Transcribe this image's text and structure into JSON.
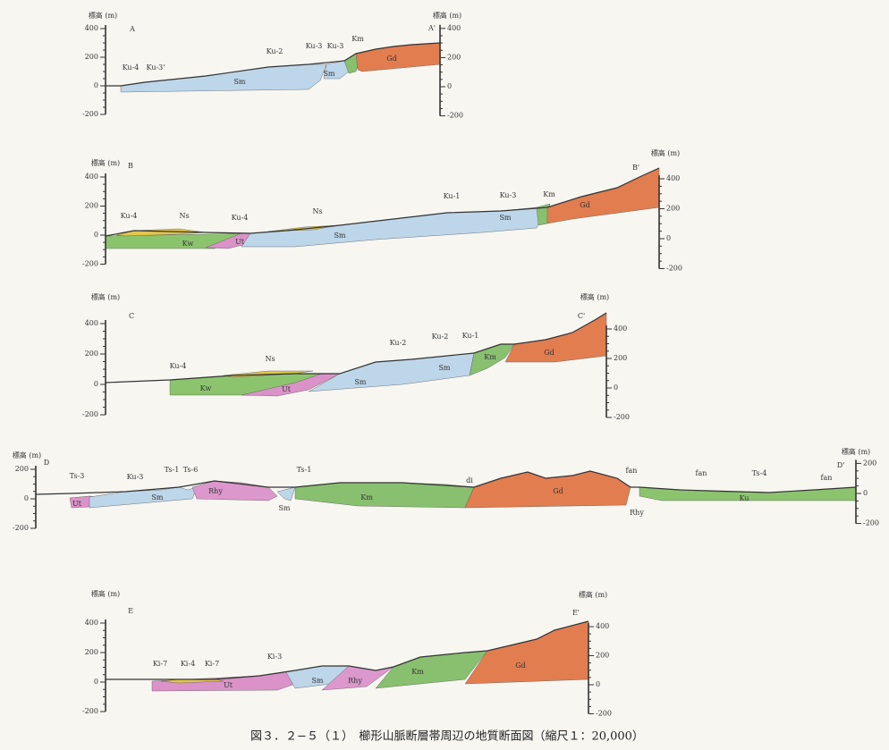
{
  "sections": [
    {
      "id": "A",
      "end_left": "A",
      "end_right": "A'",
      "axis_left": {
        "label": "標高 (m)",
        "ticks": [
          400,
          200,
          0,
          -200
        ]
      },
      "axis_right": {
        "label": "標高 (m)",
        "ticks": [
          400,
          200,
          0,
          -200
        ]
      },
      "units": [
        "Ku-4",
        "Ku-3'",
        "Ku-2",
        "Ku-3",
        "Ku-3",
        "Km",
        "Sm",
        "Sm",
        "Gd"
      ]
    },
    {
      "id": "B",
      "end_left": "B",
      "end_right": "B'",
      "axis_left": {
        "label": "標高 (m)",
        "ticks": [
          400,
          200,
          0,
          -200
        ]
      },
      "axis_right": {
        "label": "標高 (m)",
        "ticks": [
          400,
          200,
          0,
          -200
        ]
      },
      "units": [
        "Ku-4",
        "Ns",
        "Ku-4",
        "Ns",
        "Ku-1",
        "Ku-3",
        "Km",
        "Kw",
        "Ut",
        "Sm",
        "Sm",
        "Gd"
      ]
    },
    {
      "id": "C",
      "end_left": "C",
      "end_right": "C'",
      "axis_left": {
        "label": "標高 (m)",
        "ticks": [
          400,
          200,
          0,
          -200
        ]
      },
      "axis_right": {
        "label": "標高 (m)",
        "ticks": [
          400,
          200,
          0,
          -200
        ]
      },
      "units": [
        "Ku-4",
        "Ns",
        "Ku-2",
        "Ku-2",
        "Ku-1",
        "Kw",
        "Ut",
        "Sm",
        "Sm",
        "Km",
        "Gd"
      ]
    },
    {
      "id": "D",
      "end_left": "D",
      "end_right": "D'",
      "axis_left": {
        "label": "標高 (m)",
        "ticks": [
          200,
          0,
          -200
        ]
      },
      "axis_right": {
        "label": "標高 (m)",
        "ticks": [
          200,
          0,
          -200
        ]
      },
      "units": [
        "Ts-3",
        "Ku-3",
        "Ts-1",
        "Ts-6",
        "Ts-1",
        "di",
        "fan",
        "fan",
        "Ts-4",
        "fan",
        "Ut",
        "Sm",
        "Rhy",
        "Sm",
        "Km",
        "Gd",
        "Rhy",
        "Ku"
      ]
    },
    {
      "id": "E",
      "end_left": "E",
      "end_right": "E'",
      "axis_left": {
        "label": "標高 (m)",
        "ticks": [
          400,
          200,
          0,
          -200
        ]
      },
      "axis_right": {
        "label": "標高 (m)",
        "ticks": [
          400,
          200,
          0,
          -200
        ]
      },
      "units": [
        "Ki-7",
        "Ki-4",
        "Ki-7",
        "Ki-3",
        "Ut",
        "Sm",
        "Rhy",
        "Km",
        "Gd"
      ]
    }
  ],
  "caption": "図３．２−５（１）　櫛形山脈断層帯周辺の地質断面図（縮尺１：20,000）"
}
